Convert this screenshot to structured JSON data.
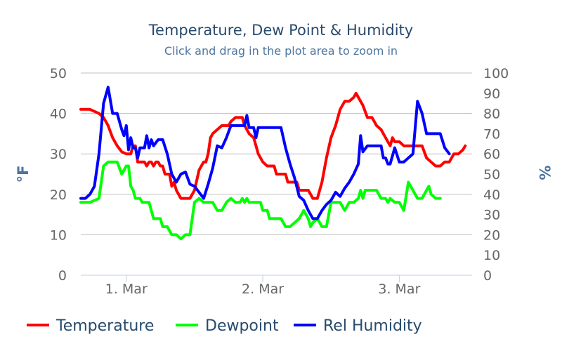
{
  "chart_data": {
    "type": "line",
    "title": "Temperature, Dew Point & Humidity",
    "subtitle": "Click and drag in the plot area to zoom in",
    "ylabel_left": "°F",
    "ylabel_right": "%",
    "ylim_left": [
      0,
      50
    ],
    "ylim_right": [
      0,
      100
    ],
    "yticks_left": [
      "0",
      "10",
      "20",
      "30",
      "40",
      "50"
    ],
    "yticks_right": [
      "0",
      "10",
      "20",
      "30",
      "40",
      "50",
      "60",
      "70",
      "80",
      "90",
      "100"
    ],
    "xlim_hours": [
      -10,
      76
    ],
    "xticks": [
      {
        "label": "1. Mar",
        "hour": 0
      },
      {
        "label": "2. Mar",
        "hour": 30
      },
      {
        "label": "3. Mar",
        "hour": 60
      }
    ],
    "grid": true,
    "legend_position": "bottom",
    "series": [
      {
        "name": "Temperature",
        "color": "#ff0000",
        "axis": "left",
        "points": [
          [
            -10,
            41
          ],
          [
            -9,
            41
          ],
          [
            -8,
            41
          ],
          [
            -7,
            40.5
          ],
          [
            -6,
            40
          ],
          [
            -5,
            39
          ],
          [
            -4,
            37
          ],
          [
            -3,
            34
          ],
          [
            -2,
            32
          ],
          [
            -1,
            30.5
          ],
          [
            0,
            30
          ],
          [
            1,
            30
          ],
          [
            1.5,
            32
          ],
          [
            2,
            32
          ],
          [
            2.5,
            28
          ],
          [
            3,
            28
          ],
          [
            4,
            28
          ],
          [
            4.5,
            27
          ],
          [
            5,
            28
          ],
          [
            5.5,
            28
          ],
          [
            6,
            27
          ],
          [
            6.5,
            28
          ],
          [
            7,
            28
          ],
          [
            7.5,
            27
          ],
          [
            8,
            27
          ],
          [
            8.5,
            25
          ],
          [
            9,
            25
          ],
          [
            9.5,
            25
          ],
          [
            10,
            22
          ],
          [
            10.5,
            23
          ],
          [
            11,
            21
          ],
          [
            12,
            19
          ],
          [
            13,
            19
          ],
          [
            14,
            19
          ],
          [
            15,
            21
          ],
          [
            16,
            26
          ],
          [
            17,
            28
          ],
          [
            17.5,
            28
          ],
          [
            18,
            30
          ],
          [
            18.5,
            34
          ],
          [
            19,
            35
          ],
          [
            20,
            36
          ],
          [
            21,
            37
          ],
          [
            22,
            37
          ],
          [
            22.5,
            37
          ],
          [
            23,
            38
          ],
          [
            24,
            39
          ],
          [
            25,
            39
          ],
          [
            25.5,
            39
          ],
          [
            26,
            37
          ],
          [
            27,
            35
          ],
          [
            28,
            34
          ],
          [
            28.5,
            32
          ],
          [
            29,
            30
          ],
          [
            30,
            28
          ],
          [
            30.5,
            27.5
          ],
          [
            31,
            27
          ],
          [
            32,
            27
          ],
          [
            32.5,
            27
          ],
          [
            33,
            25
          ],
          [
            34,
            25
          ],
          [
            35,
            25
          ],
          [
            35.5,
            23
          ],
          [
            36,
            23
          ],
          [
            37,
            23
          ],
          [
            37.5,
            23
          ],
          [
            38,
            21
          ],
          [
            39,
            21
          ],
          [
            40,
            21
          ],
          [
            40.5,
            20
          ],
          [
            41,
            19
          ],
          [
            42,
            19
          ],
          [
            43,
            23
          ],
          [
            44,
            29
          ],
          [
            45,
            34
          ],
          [
            46,
            37
          ],
          [
            47,
            41
          ],
          [
            48,
            43
          ],
          [
            49,
            43
          ],
          [
            50,
            44
          ],
          [
            50.5,
            45
          ],
          [
            51,
            44
          ],
          [
            52,
            42
          ],
          [
            53,
            39
          ],
          [
            54,
            39
          ],
          [
            54.5,
            38
          ],
          [
            55,
            37
          ],
          [
            56,
            36
          ],
          [
            57,
            34
          ],
          [
            58,
            32
          ],
          [
            58.5,
            34
          ],
          [
            59,
            33
          ],
          [
            60,
            33
          ],
          [
            61,
            32
          ],
          [
            62,
            32
          ],
          [
            63,
            32
          ],
          [
            64,
            32
          ],
          [
            65,
            32
          ],
          [
            66,
            29
          ],
          [
            67,
            28
          ],
          [
            68,
            27
          ],
          [
            69,
            27
          ],
          [
            70,
            28
          ],
          [
            71,
            28
          ],
          [
            72,
            30
          ],
          [
            73,
            30
          ],
          [
            74,
            31
          ],
          [
            74.5,
            32
          ]
        ]
      },
      {
        "name": "Dewpoint",
        "color": "#00ff00",
        "axis": "left",
        "points": [
          [
            -10,
            18
          ],
          [
            -9,
            18
          ],
          [
            -8,
            18
          ],
          [
            -7,
            18.5
          ],
          [
            -6,
            19
          ],
          [
            -5,
            27
          ],
          [
            -4,
            28
          ],
          [
            -3,
            28
          ],
          [
            -2,
            28
          ],
          [
            -1,
            25
          ],
          [
            0,
            27
          ],
          [
            0.5,
            27
          ],
          [
            1,
            22
          ],
          [
            1.5,
            21
          ],
          [
            2,
            19
          ],
          [
            3,
            19
          ],
          [
            3.5,
            18
          ],
          [
            4,
            18
          ],
          [
            5,
            18
          ],
          [
            5.5,
            16
          ],
          [
            6,
            14
          ],
          [
            7,
            14
          ],
          [
            7.5,
            14
          ],
          [
            8,
            12
          ],
          [
            9,
            12
          ],
          [
            10,
            10
          ],
          [
            11,
            10
          ],
          [
            12,
            9
          ],
          [
            13,
            10
          ],
          [
            14,
            10
          ],
          [
            15,
            18
          ],
          [
            16,
            19
          ],
          [
            17,
            18
          ],
          [
            18,
            18
          ],
          [
            19,
            18
          ],
          [
            20,
            16
          ],
          [
            21,
            16
          ],
          [
            22,
            18
          ],
          [
            23,
            19
          ],
          [
            24,
            18
          ],
          [
            25,
            18
          ],
          [
            25.5,
            19
          ],
          [
            26,
            18
          ],
          [
            26.5,
            19
          ],
          [
            27,
            18
          ],
          [
            28,
            18
          ],
          [
            29,
            18
          ],
          [
            29.5,
            18
          ],
          [
            30,
            16
          ],
          [
            31,
            16
          ],
          [
            31.5,
            14
          ],
          [
            32,
            14
          ],
          [
            33,
            14
          ],
          [
            34,
            14
          ],
          [
            35,
            12
          ],
          [
            36,
            12
          ],
          [
            37,
            13
          ],
          [
            38,
            14
          ],
          [
            39,
            16
          ],
          [
            40,
            14
          ],
          [
            40.5,
            12
          ],
          [
            41,
            13
          ],
          [
            42,
            14
          ],
          [
            43,
            12
          ],
          [
            44,
            12
          ],
          [
            45,
            18
          ],
          [
            46,
            18
          ],
          [
            47,
            18
          ],
          [
            48,
            16
          ],
          [
            49,
            18
          ],
          [
            50,
            18
          ],
          [
            51,
            19
          ],
          [
            51.5,
            21
          ],
          [
            52,
            19
          ],
          [
            52.5,
            21
          ],
          [
            53,
            21
          ],
          [
            54,
            21
          ],
          [
            55,
            21
          ],
          [
            56,
            19
          ],
          [
            57,
            19
          ],
          [
            57.5,
            18
          ],
          [
            58,
            19
          ],
          [
            59,
            18
          ],
          [
            60,
            18
          ],
          [
            61,
            16
          ],
          [
            62,
            23
          ],
          [
            63,
            21
          ],
          [
            64,
            19
          ],
          [
            65,
            19
          ],
          [
            66,
            21
          ],
          [
            66.5,
            22
          ],
          [
            67,
            20
          ],
          [
            68,
            19
          ],
          [
            69,
            19
          ]
        ]
      },
      {
        "name": "Rel Humidity",
        "color": "#0000ff",
        "axis": "right",
        "points": [
          [
            -10,
            38
          ],
          [
            -9,
            38
          ],
          [
            -8,
            40
          ],
          [
            -7,
            44
          ],
          [
            -6,
            60
          ],
          [
            -5,
            85
          ],
          [
            -4,
            93
          ],
          [
            -3,
            80
          ],
          [
            -2,
            80
          ],
          [
            -1,
            72
          ],
          [
            -0.5,
            69
          ],
          [
            0,
            74
          ],
          [
            0.5,
            62
          ],
          [
            1,
            68
          ],
          [
            1.5,
            63
          ],
          [
            2,
            63
          ],
          [
            2.5,
            58
          ],
          [
            3,
            63
          ],
          [
            4,
            63
          ],
          [
            4.5,
            69
          ],
          [
            5,
            63
          ],
          [
            5.5,
            67
          ],
          [
            6,
            64
          ],
          [
            7,
            67
          ],
          [
            8,
            67
          ],
          [
            9,
            60
          ],
          [
            10,
            50
          ],
          [
            11,
            46
          ],
          [
            12,
            50
          ],
          [
            13,
            51
          ],
          [
            14,
            45
          ],
          [
            15,
            44
          ],
          [
            16,
            41
          ],
          [
            17,
            38
          ],
          [
            18,
            45
          ],
          [
            19,
            53
          ],
          [
            20,
            64
          ],
          [
            21,
            63
          ],
          [
            22,
            68
          ],
          [
            23,
            74
          ],
          [
            24,
            74
          ],
          [
            25,
            74
          ],
          [
            26,
            74
          ],
          [
            26.5,
            79
          ],
          [
            27,
            73
          ],
          [
            28,
            73
          ],
          [
            28.5,
            68
          ],
          [
            29,
            73
          ],
          [
            30,
            73
          ],
          [
            31,
            73
          ],
          [
            32,
            73
          ],
          [
            33,
            73
          ],
          [
            34,
            73
          ],
          [
            35,
            63
          ],
          [
            36,
            55
          ],
          [
            37,
            48
          ],
          [
            38,
            39
          ],
          [
            39,
            37
          ],
          [
            40,
            32
          ],
          [
            41,
            28
          ],
          [
            42,
            28
          ],
          [
            43,
            32
          ],
          [
            44,
            35
          ],
          [
            45,
            37
          ],
          [
            46,
            41
          ],
          [
            47,
            39
          ],
          [
            48,
            43
          ],
          [
            49,
            46
          ],
          [
            50,
            50
          ],
          [
            51,
            55
          ],
          [
            51.5,
            69
          ],
          [
            52,
            61
          ],
          [
            53,
            64
          ],
          [
            54,
            64
          ],
          [
            55,
            64
          ],
          [
            56,
            64
          ],
          [
            56.5,
            58
          ],
          [
            57,
            58
          ],
          [
            57.5,
            55
          ],
          [
            58,
            55
          ],
          [
            59,
            63
          ],
          [
            60,
            56
          ],
          [
            61,
            56
          ],
          [
            62,
            58
          ],
          [
            63,
            60
          ],
          [
            64,
            86
          ],
          [
            65,
            80
          ],
          [
            66,
            70
          ],
          [
            67,
            70
          ],
          [
            68,
            70
          ],
          [
            69,
            70
          ],
          [
            70,
            63
          ],
          [
            71,
            60
          ]
        ]
      }
    ]
  }
}
